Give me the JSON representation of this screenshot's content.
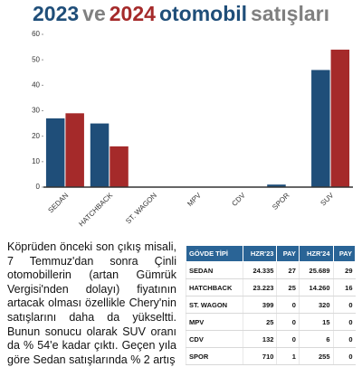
{
  "title_parts": [
    {
      "text": "2023",
      "color": "#1f4e79"
    },
    {
      "text": "ve",
      "color": "#808080"
    },
    {
      "text": "2024",
      "color": "#a52a2a"
    },
    {
      "text": "otomobil",
      "color": "#1f4e79"
    },
    {
      "text": "satışları",
      "color": "#808080"
    }
  ],
  "chart_data": {
    "type": "bar",
    "categories": [
      "SEDAN",
      "HATCHBACK",
      "ST. WAGON",
      "MPV",
      "CDV",
      "SPOR",
      "SUV"
    ],
    "series": [
      {
        "color": "#1f4e79",
        "values": [
          27,
          25,
          0,
          0,
          0,
          1,
          46
        ]
      },
      {
        "color": "#a52a2a",
        "values": [
          29,
          16,
          0,
          0,
          0,
          0,
          54
        ]
      }
    ],
    "ylim": [
      0,
      60
    ],
    "yticks": [
      0,
      10,
      20,
      30,
      40,
      50,
      60
    ],
    "grid": false
  },
  "article": {
    "paragraph": "Köprüden önceki son çıkış misali, 7 Temmuz'dan sonra Çinli otomobillerin (artan Gümrük Vergisi'nden dolayı) fiyatının artacak olması özellikle Chery'nin satışlarını daha da yükseltti. Bunun sonucu olarak SUV oranı da % 54'e kadar çıktı. Geçen yıla göre Sedan satışlarında % 2 artış"
  },
  "table": {
    "header": [
      "GÖVDE TİPİ",
      "HZR'23",
      "PAY",
      "HZR'24",
      "PAY"
    ],
    "rows": [
      [
        "SEDAN",
        "24.335",
        "27",
        "25.689",
        "29"
      ],
      [
        "HATCHBACK",
        "23.223",
        "25",
        "14.260",
        "16"
      ],
      [
        "ST. WAGON",
        "399",
        "0",
        "320",
        "0"
      ],
      [
        "MPV",
        "25",
        "0",
        "15",
        "0"
      ],
      [
        "CDV",
        "132",
        "0",
        "6",
        "0"
      ],
      [
        "SPOR",
        "710",
        "1",
        "255",
        "0"
      ]
    ]
  }
}
